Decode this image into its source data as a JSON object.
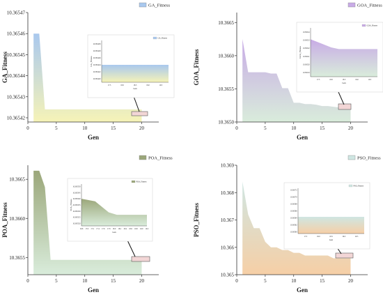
{
  "chart_data": [
    {
      "type": "area",
      "legend": "GA_Fitness",
      "xlabel": "Gen",
      "ylabel": "GA_Fitness",
      "x": [
        1,
        2,
        3,
        4,
        5,
        6,
        7,
        8,
        9,
        10,
        11,
        12,
        13,
        14,
        15,
        16,
        17,
        18,
        19,
        20
      ],
      "y": [
        10.36546,
        10.36546,
        10.365424,
        10.365424,
        10.365424,
        10.365424,
        10.365424,
        10.365424,
        10.365424,
        10.365424,
        10.365424,
        10.365424,
        10.365424,
        10.365424,
        10.365424,
        10.365424,
        10.365424,
        10.365424,
        10.365424,
        10.365424
      ],
      "xlim": [
        0,
        23
      ],
      "ylim": [
        10.365418,
        10.36547
      ],
      "xticks": [
        "0",
        "5",
        "10",
        "15",
        "20"
      ],
      "yticks": [
        "10.36547",
        "10.36546",
        "10.36545",
        "10.36544",
        "10.36543",
        "10.36542"
      ],
      "gradient": [
        "#a9c8ee",
        "#f6f3b7"
      ],
      "inset": {
        "legend": "GA_Fitness",
        "xlabel": "Gen",
        "ylabel": "GA_Fitness",
        "xticks": [
          "17.5",
          "18.0",
          "18.5",
          "19.0",
          "19.5"
        ],
        "yticks": [
          "10.365430",
          "10.365428",
          "10.365426",
          "10.365424",
          "10.365422",
          "10.365420"
        ],
        "x": [
          17.2,
          19.8
        ],
        "y": [
          10.365424,
          10.365424
        ],
        "xlim": [
          17.2,
          19.8
        ],
        "ylim": [
          10.365419,
          10.365431
        ]
      }
    },
    {
      "type": "area",
      "legend": "GOA_Fitness",
      "xlabel": "Gen",
      "ylabel": "GOA_Fitness",
      "x": [
        1,
        2,
        3,
        4,
        5,
        6,
        7,
        8,
        9,
        10,
        11,
        12,
        13,
        14,
        15,
        16,
        17,
        18,
        19,
        20
      ],
      "y": [
        10.36625,
        10.36575,
        10.36575,
        10.36575,
        10.36575,
        10.36573,
        10.36573,
        10.36551,
        10.36551,
        10.36529,
        10.36529,
        10.36527,
        10.36527,
        10.36526,
        10.36524,
        10.36524,
        10.36523,
        10.36522,
        10.36521,
        10.3652
      ],
      "xlim": [
        0,
        23
      ],
      "ylim": [
        10.365,
        10.36665
      ],
      "xticks": [
        "0",
        "5",
        "10",
        "15",
        "20"
      ],
      "yticks": [
        "10.3665",
        "10.3660",
        "10.3655",
        "10.3650"
      ],
      "gradient": [
        "#c8abe6",
        "#d9ecdb"
      ],
      "inset": {
        "legend": "GOA_Fitness",
        "xlabel": "Gen",
        "ylabel": "GOA_Fitness",
        "xticks": [
          "17.5",
          "18.0",
          "18.5",
          "19.0",
          "19.5"
        ],
        "yticks": [
          "10.36524",
          "10.36523",
          "10.36522",
          "10.36521",
          "10.36520",
          "10.36519"
        ],
        "x": [
          17.2,
          17.6,
          18.0,
          18.3,
          19.0,
          19.8
        ],
        "y": [
          10.365231,
          10.365226,
          10.365221,
          10.365219,
          10.365219,
          10.365219
        ],
        "xlim": [
          17.2,
          19.8
        ],
        "ylim": [
          10.365185,
          10.365245
        ]
      }
    },
    {
      "type": "area",
      "legend": "POA_Fitness",
      "xlabel": "Gen",
      "ylabel": "POA_Fitness",
      "x": [
        1,
        2,
        3,
        4,
        5,
        6,
        7,
        8,
        9,
        10,
        11,
        12,
        13,
        14,
        15,
        16,
        17,
        18,
        19,
        20
      ],
      "y": [
        10.36661,
        10.36661,
        10.3664,
        10.36547,
        10.36547,
        10.36547,
        10.36547,
        10.36547,
        10.36547,
        10.36547,
        10.36547,
        10.36547,
        10.36547,
        10.36547,
        10.36547,
        10.36547,
        10.36547,
        10.36547,
        10.36547,
        10.36547
      ],
      "xlim": [
        0,
        23
      ],
      "ylim": [
        10.36528,
        10.36668
      ],
      "xticks": [
        "0",
        "5",
        "10",
        "15",
        "20"
      ],
      "yticks": [
        "10.3665",
        "10.3660",
        "10.3655"
      ],
      "gradient": [
        "#9ba77a",
        "#d9ecdb"
      ],
      "inset": {
        "legend": "POA_Fitness",
        "xlabel": "Gen",
        "ylabel": "POA_Fitness",
        "xticks": [
          "16.8",
          "17.0",
          "17.2",
          "17.4",
          "17.6",
          "17.8",
          "18.0",
          "18.2",
          "18.4",
          "18.6",
          "18.8",
          "19.0",
          "19.2"
        ],
        "yticks": [
          "10.365550",
          "10.365545",
          "10.365540",
          "10.365535",
          "10.365530",
          "10.365525",
          "10.365520"
        ],
        "x": [
          16.8,
          17.3,
          17.8,
          18.1,
          18.5,
          19.2
        ],
        "y": [
          10.36554,
          10.365538,
          10.365529,
          10.365527,
          10.365527,
          10.365527
        ],
        "xlim": [
          16.8,
          19.2
        ],
        "ylim": [
          10.365518,
          10.365552
        ]
      }
    },
    {
      "type": "area",
      "legend": "PSO_Fitness",
      "xlabel": "Gen",
      "ylabel": "PSO_Fitness",
      "x": [
        1,
        2,
        3,
        4,
        5,
        6,
        7,
        8,
        9,
        10,
        11,
        12,
        13,
        14,
        15,
        16,
        17,
        18,
        19,
        20
      ],
      "y": [
        10.3684,
        10.3672,
        10.3667,
        10.3667,
        10.3662,
        10.366,
        10.366,
        10.3659,
        10.3659,
        10.3658,
        10.3658,
        10.3657,
        10.3657,
        10.3657,
        10.3657,
        10.3657,
        10.3656,
        10.3656,
        10.3656,
        10.3656
      ],
      "xlim": [
        0,
        23
      ],
      "ylim": [
        10.365,
        10.369
      ],
      "xticks": [
        "0",
        "5",
        "10",
        "15",
        "20"
      ],
      "yticks": [
        "10.369",
        "10.368",
        "10.367",
        "10.366",
        "10.365"
      ],
      "gradient": [
        "#cfe6e2",
        "#f6cfa6"
      ],
      "inset": {
        "legend": "PSO_Fitness",
        "xlabel": "Gen",
        "xticks": [
          "17.5",
          "18.0",
          "18.5",
          "19.0",
          "19.5"
        ],
        "yticks": [
          "10.36572",
          "10.36570",
          "10.36568",
          "10.36566",
          "10.36564",
          "10.36562",
          "10.36560"
        ],
        "x": [
          17.2,
          19.8
        ],
        "y": [
          10.365643,
          10.365643
        ],
        "xlim": [
          17.2,
          19.8
        ],
        "ylim": [
          10.365595,
          10.365725
        ]
      }
    }
  ]
}
